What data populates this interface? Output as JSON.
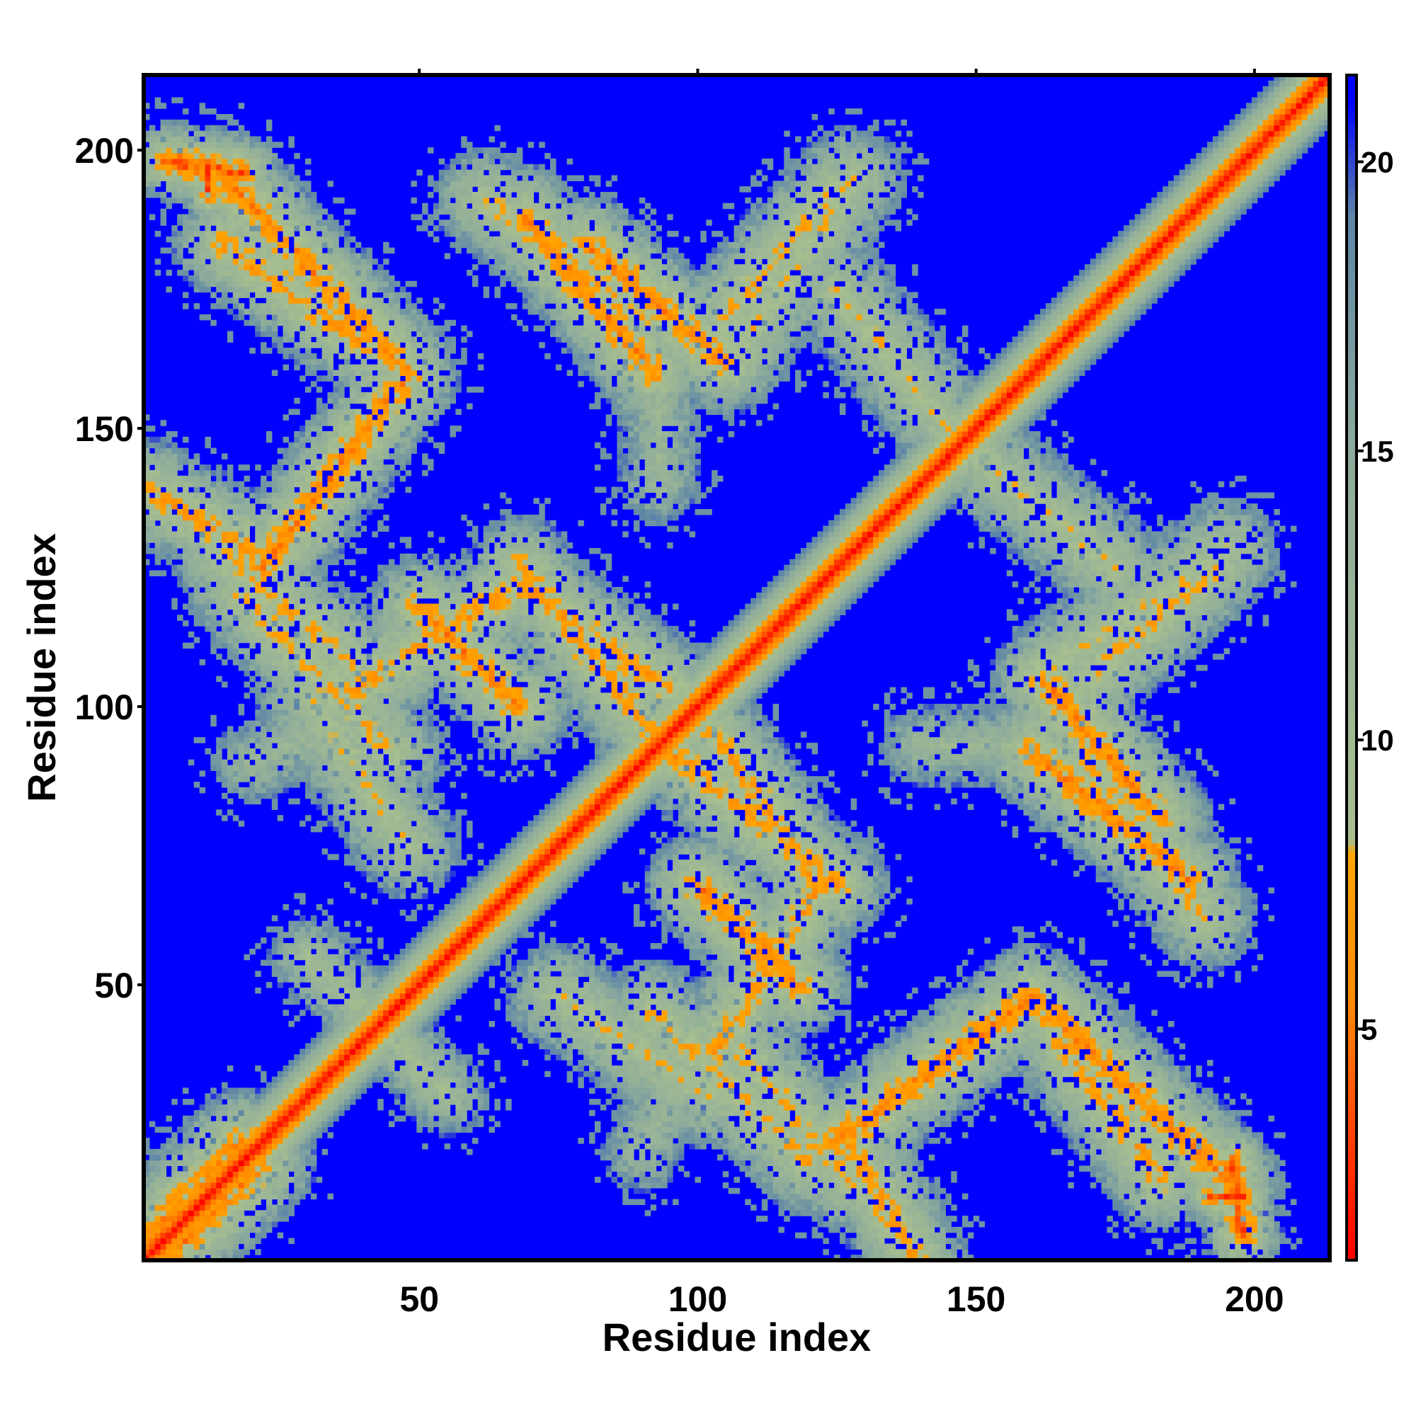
{
  "chart_data": {
    "type": "heatmap",
    "title": "",
    "xlabel": "Residue index",
    "ylabel": "Residue index",
    "n_residues": 213,
    "xlim": [
      1,
      213
    ],
    "ylim": [
      1,
      213
    ],
    "x_ticks": [
      50,
      100,
      150,
      200
    ],
    "y_ticks": [
      50,
      100,
      150,
      200
    ],
    "x_tick_labels": [
      "50",
      "100",
      "150",
      "200"
    ],
    "y_tick_labels": [
      "50",
      "100",
      "150",
      "200"
    ],
    "colorbar": {
      "range": [
        1,
        21.5
      ],
      "ticks": [
        5,
        10,
        15,
        20
      ],
      "tick_labels": [
        "5",
        "10",
        "15",
        "20"
      ],
      "stops": [
        {
          "value": 1,
          "color": "#ff0000"
        },
        {
          "value": 5.5,
          "color": "#ff8c00"
        },
        {
          "value": 8.0,
          "color": "#ffa500"
        },
        {
          "value": 8.2,
          "color": "#a9bf8f"
        },
        {
          "value": 15,
          "color": "#8cab9c"
        },
        {
          "value": 19,
          "color": "#5e86a6"
        },
        {
          "value": 21,
          "color": "#0000ff"
        }
      ]
    },
    "background_value": 21.5,
    "diagonal": {
      "peak": 1.5,
      "width": 7
    },
    "contact_bands": [
      {
        "x": [
          1,
          22
        ],
        "y": [
          139,
          127
        ],
        "peak": 7,
        "width": 4
      },
      {
        "x": [
          15,
          40
        ],
        "y": [
          183,
          165
        ],
        "peak": 7,
        "width": 4
      },
      {
        "x": [
          5,
          18
        ],
        "y": [
          198,
          196
        ],
        "peak": 4,
        "width": 3
      },
      {
        "x": [
          15,
          38
        ],
        "y": [
          127,
          108
        ],
        "peak": 8,
        "width": 4
      },
      {
        "x": [
          38,
          68
        ],
        "y": [
          103,
          122
        ],
        "peak": 7,
        "width": 4
      },
      {
        "x": [
          68,
          95
        ],
        "y": [
          122,
          103
        ],
        "peak": 7,
        "width": 4
      },
      {
        "x": [
          20,
          42
        ],
        "y": [
          90,
          100
        ],
        "peak": 12,
        "width": 3
      },
      {
        "x": [
          80,
          105
        ],
        "y": [
          183,
          162
        ],
        "peak": 6,
        "width": 4
      },
      {
        "x": [
          62,
          90
        ],
        "y": [
          191,
          170
        ],
        "peak": 8,
        "width": 4
      },
      {
        "x": [
          105,
          125
        ],
        "y": [
          170,
          193
        ],
        "peak": 8,
        "width": 4
      },
      {
        "x": [
          150,
          175
        ],
        "y": [
          145,
          125
        ],
        "peak": 9,
        "width": 4
      },
      {
        "x": [
          165,
          195
        ],
        "y": [
          108,
          128
        ],
        "peak": 9,
        "width": 4
      },
      {
        "x": [
          140,
          160
        ],
        "y": [
          93,
          93
        ],
        "peak": 12,
        "width": 3
      },
      {
        "x": [
          160,
          188
        ],
        "y": [
          92,
          69
        ],
        "peak": 6,
        "width": 4
      },
      {
        "x": [
          95,
          125
        ],
        "y": [
          92,
          68
        ],
        "peak": 7,
        "width": 4
      },
      {
        "x": [
          100,
          118
        ],
        "y": [
          68,
          50
        ],
        "peak": 6,
        "width": 4
      },
      {
        "x": [
          125,
          160
        ],
        "y": [
          22,
          48
        ],
        "peak": 6,
        "width": 4
      },
      {
        "x": [
          160,
          195
        ],
        "y": [
          48,
          15
        ],
        "peak": 6,
        "width": 4
      },
      {
        "x": [
          92,
          120
        ],
        "y": [
          45,
          18
        ],
        "peak": 8,
        "width": 4
      },
      {
        "x": [
          75,
          102
        ],
        "y": [
          48,
          30
        ],
        "peak": 9,
        "width": 4
      },
      {
        "x": [
          30,
          48
        ],
        "y": [
          55,
          38
        ],
        "peak": 10,
        "width": 3
      },
      {
        "x": [
          1,
          18
        ],
        "y": [
          5,
          22
        ],
        "peak": 6,
        "width": 4
      },
      {
        "x": [
          192,
          198
        ],
        "y": [
          12,
          12
        ],
        "peak": 4,
        "width": 2
      }
    ]
  }
}
